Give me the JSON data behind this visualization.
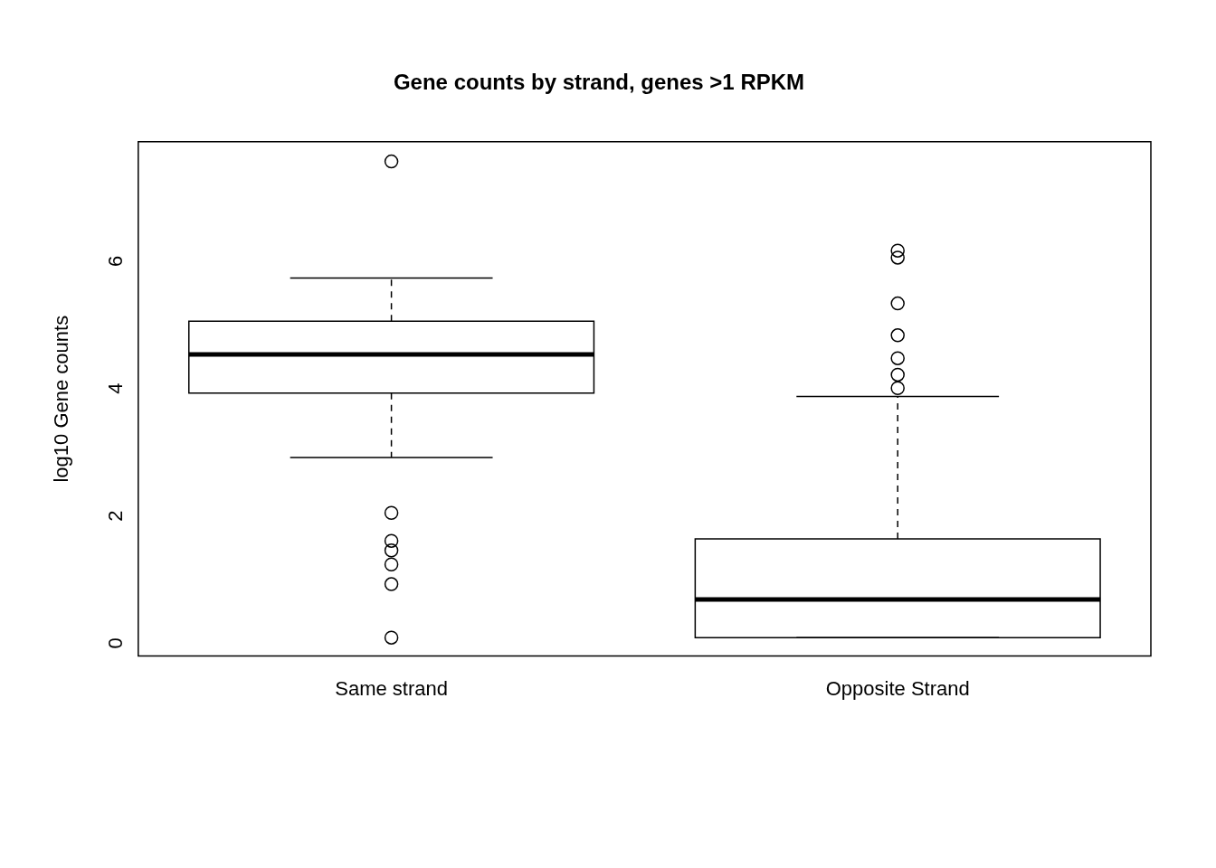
{
  "chart_data": {
    "type": "box",
    "title": "Gene counts by strand, genes >1 RPKM",
    "ylabel": "log10 Gene counts",
    "categories": [
      "Same strand",
      "Opposite Strand"
    ],
    "boxes": [
      {
        "low": 2.83,
        "q1": 3.84,
        "median": 4.45,
        "q3": 4.97,
        "high": 5.65,
        "outliers": [
          7.48,
          1.96,
          1.52,
          1.37,
          1.15,
          0.84,
          0
        ]
      },
      {
        "low": 0,
        "q1": 0,
        "median": 0.6,
        "q3": 1.55,
        "high": 3.79,
        "outliers": [
          6.08,
          5.97,
          5.25,
          4.75,
          4.39,
          4.13,
          3.92
        ]
      }
    ],
    "ylim": [
      -0.29,
      7.79
    ],
    "yticks": [
      0,
      2,
      4,
      6
    ],
    "grid": false,
    "legend": false
  }
}
